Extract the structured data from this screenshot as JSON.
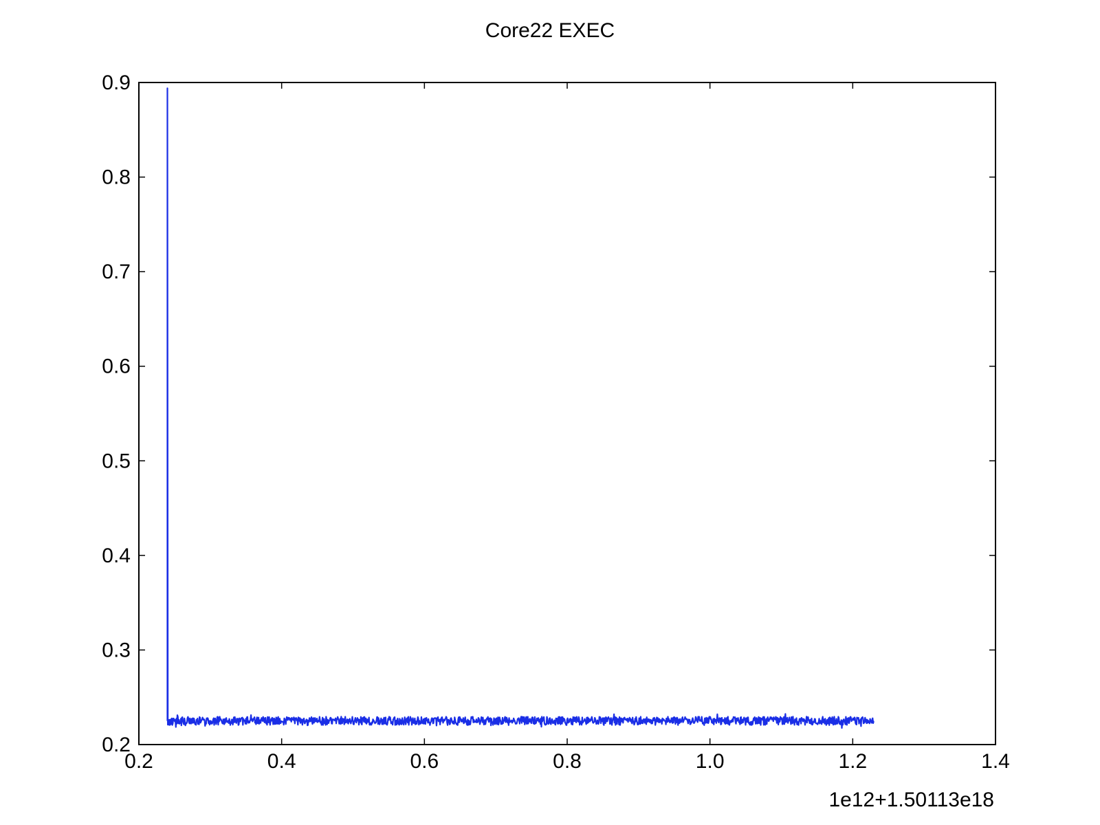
{
  "chart_data": {
    "type": "line",
    "title": "Core22 EXEC",
    "xlabel": "",
    "ylabel": "",
    "x_offset_label": "1e12+1.50113e18",
    "xlim": [
      0.2,
      1.4
    ],
    "ylim": [
      0.2,
      0.9
    ],
    "x_ticks": [
      0.2,
      0.4,
      0.6,
      0.8,
      1.0,
      1.2,
      1.4
    ],
    "x_tick_labels": [
      "0.2",
      "0.4",
      "0.6",
      "0.8",
      "1.0",
      "1.2",
      "1.4"
    ],
    "y_ticks": [
      0.2,
      0.3,
      0.4,
      0.5,
      0.6,
      0.7,
      0.8,
      0.9
    ],
    "y_tick_labels": [
      "0.2",
      "0.3",
      "0.4",
      "0.5",
      "0.6",
      "0.7",
      "0.8",
      "0.9"
    ],
    "grid": false,
    "legend": "none",
    "series": [
      {
        "color": "#1a2ee6",
        "x_start": 0.24,
        "x_end": 1.23,
        "initial_spike": 0.894,
        "steady_mean": 0.225,
        "steady_noise_range": [
          0.219,
          0.231
        ]
      }
    ]
  }
}
